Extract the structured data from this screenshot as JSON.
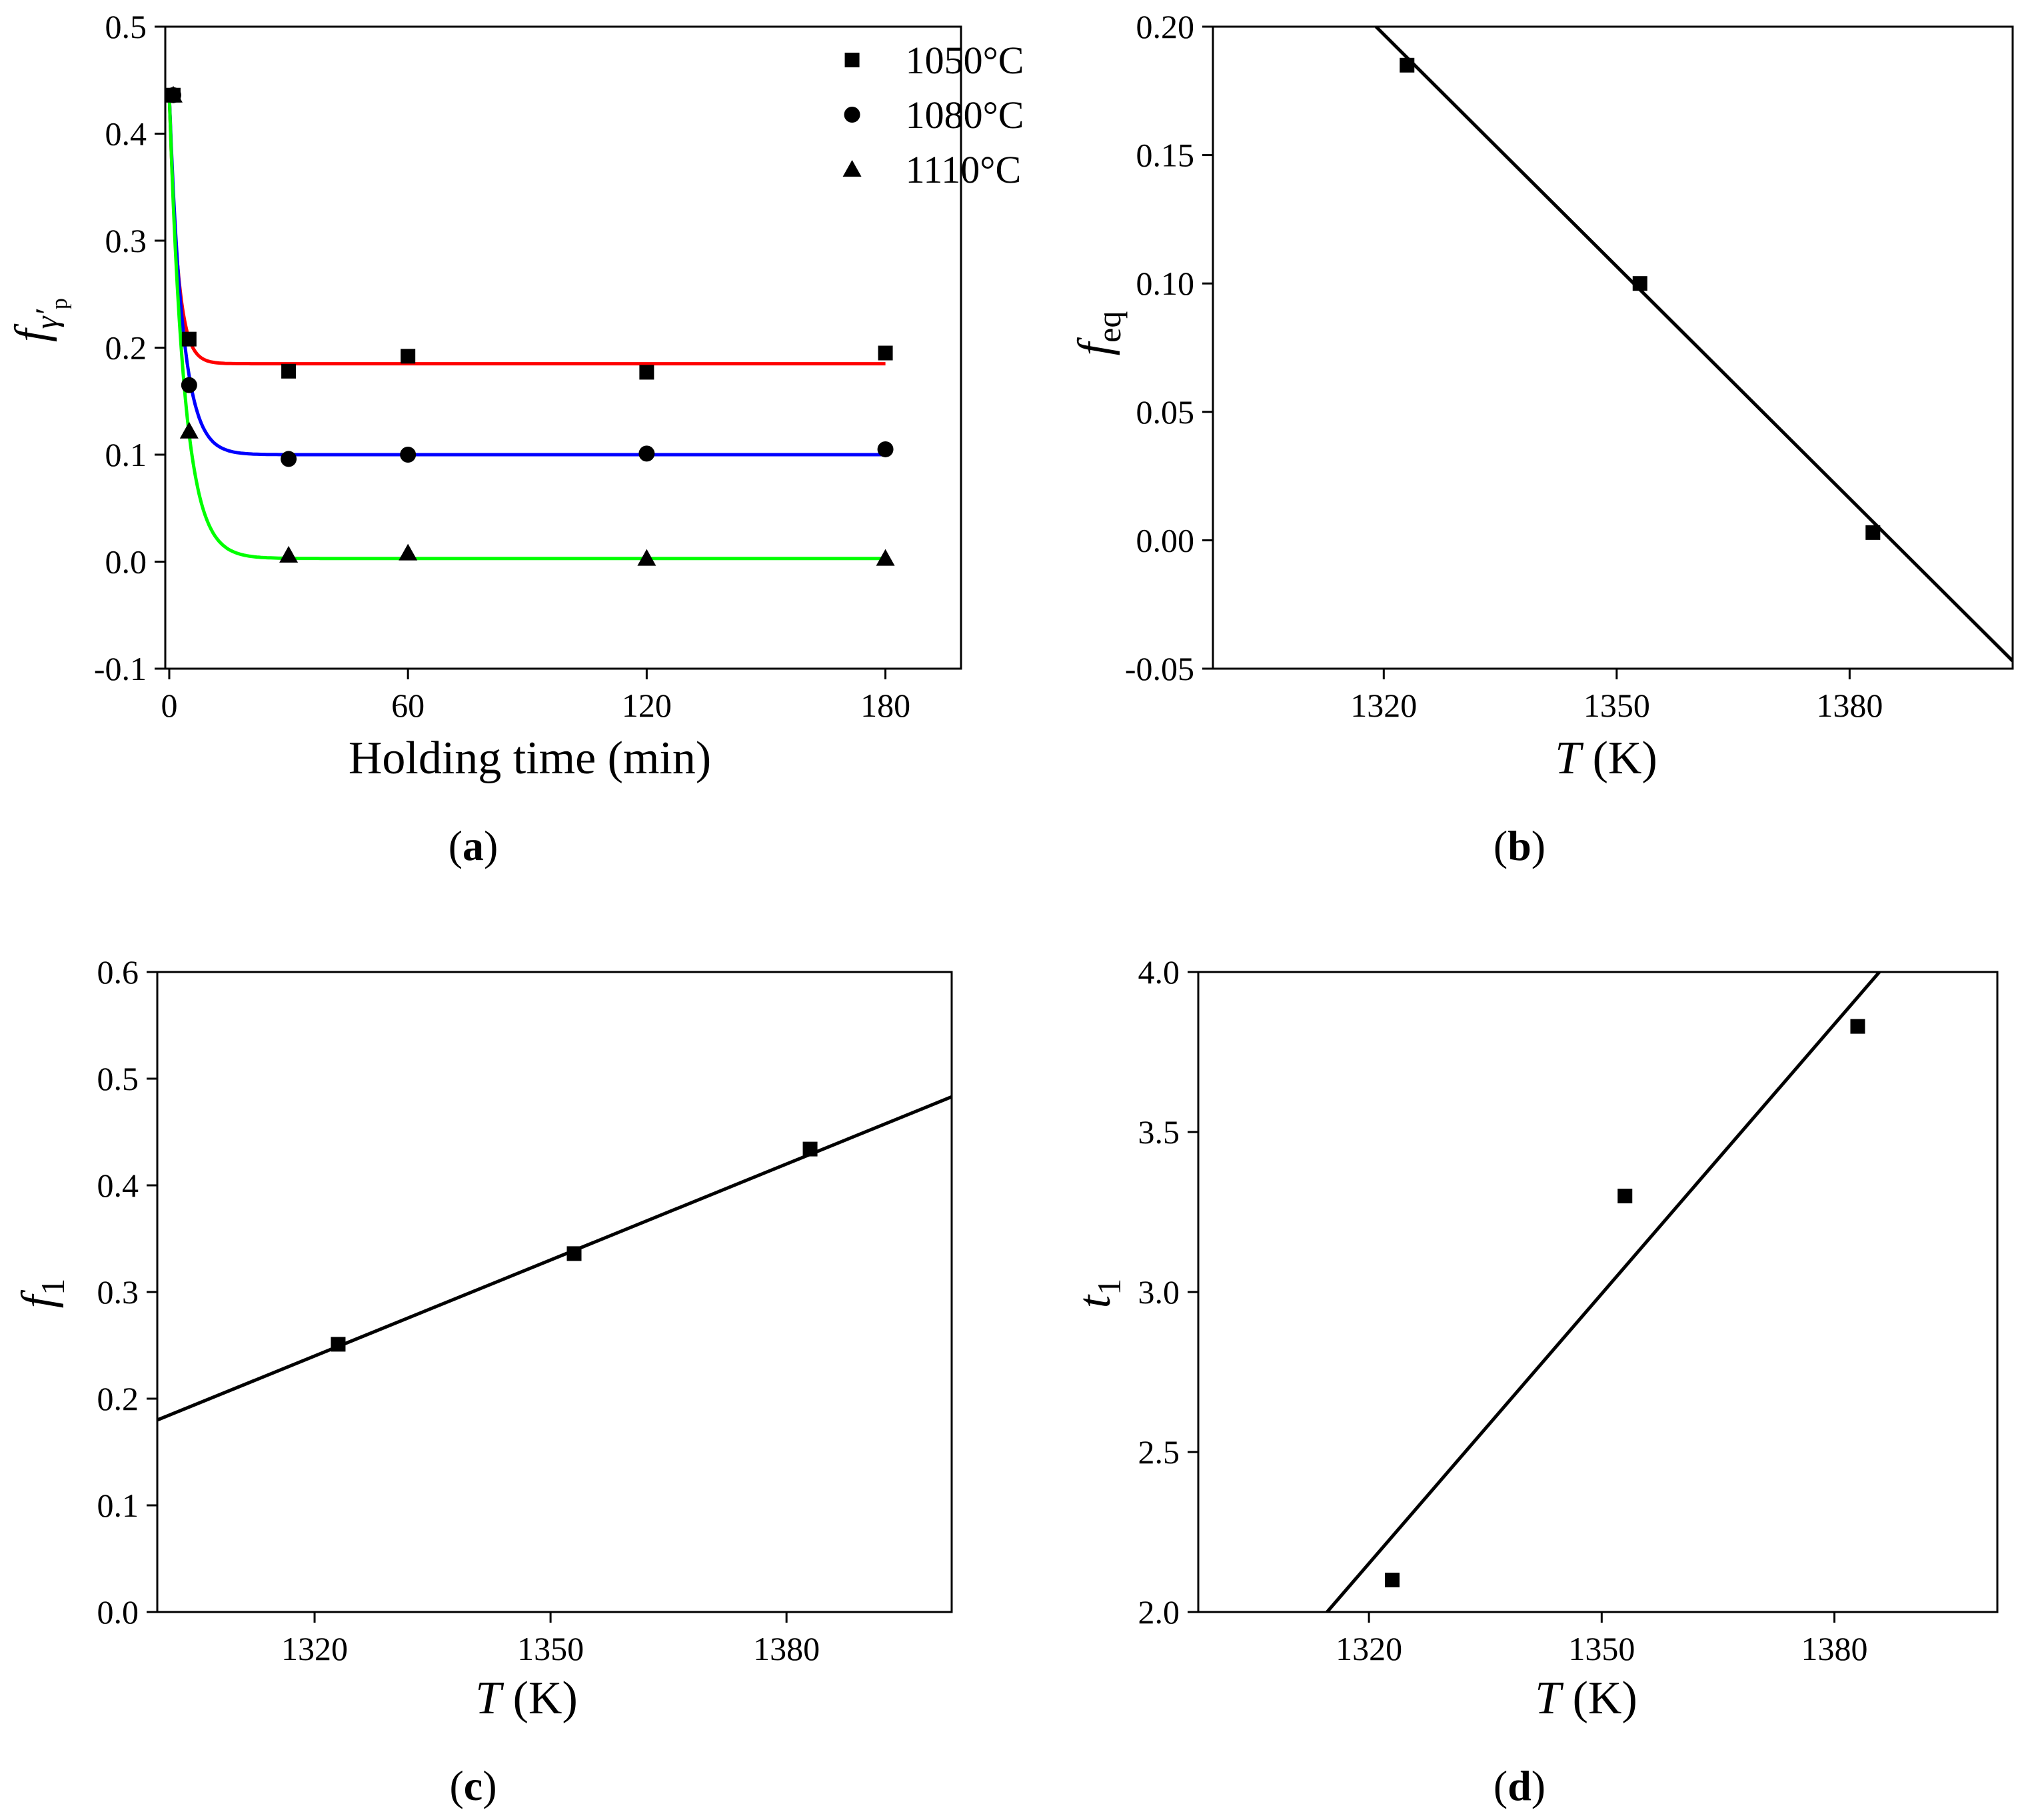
{
  "figure": {
    "title": ""
  },
  "chart_data": [
    {
      "id": "a",
      "type": "scatter",
      "caption": "a",
      "title": "",
      "xlabel": "Holding time (min)",
      "ylabel_main": "f",
      "ylabel_sub": "γ′",
      "ylabel_subsub": "p",
      "xlim": [
        -1,
        199
      ],
      "ylim": [
        -0.1,
        0.5
      ],
      "xticks": [
        0,
        60,
        120,
        180
      ],
      "xtick_labels": [
        "0",
        "60",
        "120",
        "180"
      ],
      "yticks": [
        -0.1,
        0.0,
        0.1,
        0.2,
        0.3,
        0.4,
        0.5
      ],
      "ytick_labels": [
        "-0.1",
        "0.0",
        "0.1",
        "0.2",
        "0.3",
        "0.4",
        "0.5"
      ],
      "legend_position": "top-right",
      "series": [
        {
          "name": "1050°C",
          "marker": "square",
          "color": "#ff0000",
          "x": [
            1,
            5,
            30,
            60,
            120,
            180
          ],
          "y": [
            0.436,
            0.208,
            0.178,
            0.192,
            0.177,
            0.195
          ],
          "fit": {
            "f0": 0.436,
            "feq": 0.185,
            "tau": 2.1
          }
        },
        {
          "name": "1080°C",
          "marker": "circle",
          "color": "#0000ff",
          "x": [
            1,
            5,
            30,
            60,
            120,
            180
          ],
          "y": [
            0.436,
            0.165,
            0.096,
            0.1,
            0.101,
            0.105
          ],
          "fit": {
            "f0": 0.436,
            "feq": 0.1,
            "tau": 3.3
          }
        },
        {
          "name": "1110°C",
          "marker": "triangle",
          "color": "#00ff00",
          "x": [
            1,
            5,
            30,
            60,
            120,
            180
          ],
          "y": [
            0.436,
            0.122,
            0.006,
            0.008,
            0.003,
            0.003
          ],
          "fit": {
            "f0": 0.436,
            "feq": 0.003,
            "tau": 3.8
          }
        }
      ]
    },
    {
      "id": "b",
      "type": "scatter",
      "caption": "b",
      "title": "",
      "xlabel_italic": "T",
      "xlabel_unit": " (K)",
      "ylabel_main": "f",
      "ylabel_sub": "eq",
      "xlim": [
        1298,
        1401
      ],
      "ylim": [
        -0.05,
        0.2
      ],
      "xticks": [
        1320,
        1350,
        1380
      ],
      "xtick_labels": [
        "1320",
        "1350",
        "1380"
      ],
      "yticks": [
        -0.05,
        0.0,
        0.05,
        0.1,
        0.15,
        0.2
      ],
      "ytick_labels": [
        "-0.05",
        "0.00",
        "0.05",
        "0.10",
        "0.15",
        "0.20"
      ],
      "points": {
        "x": [
          1323,
          1353,
          1383
        ],
        "y": [
          0.185,
          0.1,
          0.003
        ]
      },
      "fit_line": {
        "x": [
          1319,
          1401
        ],
        "y": [
          0.2,
          -0.047
        ]
      }
    },
    {
      "id": "c",
      "type": "scatter",
      "caption": "c",
      "title": "",
      "xlabel_italic": "T",
      "xlabel_unit": " (K)",
      "ylabel_main": "f",
      "ylabel_sub": "1",
      "xlim": [
        1300,
        1401
      ],
      "ylim": [
        0.0,
        0.6
      ],
      "xticks": [
        1320,
        1350,
        1380
      ],
      "xtick_labels": [
        "1320",
        "1350",
        "1380"
      ],
      "yticks": [
        0.0,
        0.1,
        0.2,
        0.3,
        0.4,
        0.5,
        0.6
      ],
      "ytick_labels": [
        "0.0",
        "0.1",
        "0.2",
        "0.3",
        "0.4",
        "0.5",
        "0.6"
      ],
      "points": {
        "x": [
          1323,
          1353,
          1383
        ],
        "y": [
          0.251,
          0.336,
          0.434
        ]
      },
      "fit_line": {
        "x": [
          1300,
          1401
        ],
        "y": [
          0.18,
          0.483
        ]
      }
    },
    {
      "id": "d",
      "type": "scatter",
      "caption": "d",
      "title": "",
      "xlabel_italic": "T",
      "xlabel_unit": " (K)",
      "ylabel_main": "t",
      "ylabel_sub": "1",
      "xlim": [
        1298,
        1401
      ],
      "ylim": [
        2.0,
        4.0
      ],
      "xticks": [
        1320,
        1350,
        1380
      ],
      "xtick_labels": [
        "1320",
        "1350",
        "1380"
      ],
      "yticks": [
        2.0,
        2.5,
        3.0,
        3.5,
        4.0
      ],
      "ytick_labels": [
        "2.0",
        "2.5",
        "3.0",
        "3.5",
        "4.0"
      ],
      "points": {
        "x": [
          1323,
          1353,
          1383
        ],
        "y": [
          2.1,
          3.3,
          3.83
        ],
        "y_label_note": ""
      },
      "fit_line": {
        "x": [
          1314.6,
          1385.8
        ],
        "y": [
          2.0,
          4.0
        ]
      }
    }
  ]
}
